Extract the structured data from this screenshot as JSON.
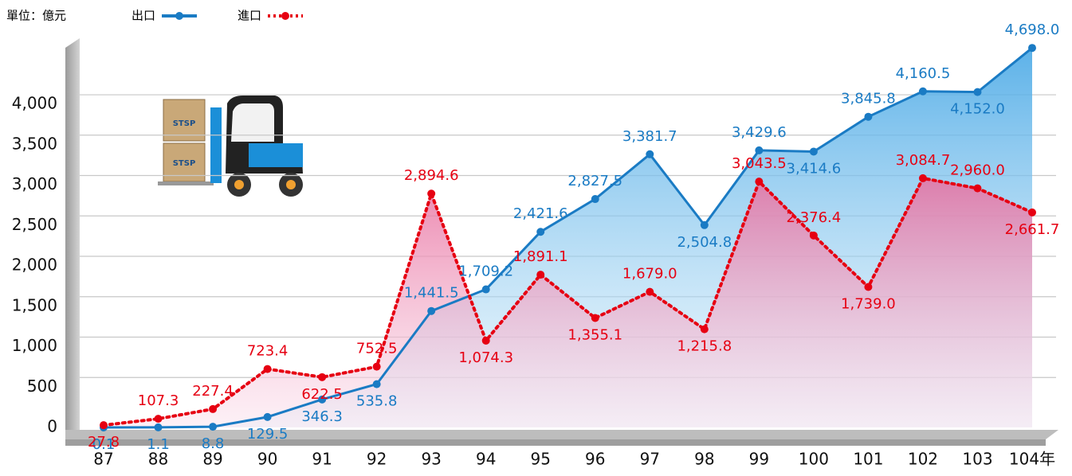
{
  "chart_data": {
    "type": "line",
    "unit_label": "單位：億元",
    "categories": [
      "87",
      "88",
      "89",
      "90",
      "91",
      "92",
      "93",
      "94",
      "95",
      "96",
      "97",
      "98",
      "99",
      "100",
      "101",
      "102",
      "103",
      "104年"
    ],
    "series": [
      {
        "name": "出口",
        "color": "#1a7bc4",
        "values": [
          0.1,
          1.1,
          8.8,
          129.5,
          346.3,
          535.8,
          1441.5,
          1709.2,
          2421.6,
          2827.5,
          3381.7,
          2504.8,
          3429.6,
          3414.6,
          3845.8,
          4160.5,
          4152.0,
          4698.0
        ],
        "value_labels": [
          "0.1",
          "1.1",
          "8.8",
          "129.5",
          "346.3",
          "535.8",
          "1,441.5",
          "1,709.2",
          "2,421.6",
          "2,827.5",
          "3,381.7",
          "2,504.8",
          "3,429.6",
          "3,414.6",
          "3,845.8",
          "4,160.5",
          "4,152.0",
          "4,698.0"
        ]
      },
      {
        "name": "進口",
        "color": "#e60012",
        "values": [
          27.8,
          107.3,
          227.4,
          723.4,
          622.5,
          752.5,
          2894.6,
          1074.3,
          1891.1,
          1355.1,
          1679.0,
          1215.8,
          3043.5,
          2376.4,
          1739.0,
          3084.7,
          2960.0,
          2661.7
        ],
        "value_labels": [
          "27.8",
          "107.3",
          "227.4",
          "723.4",
          "622.5",
          "752.5",
          "2,894.6",
          "1,074.3",
          "1,891.1",
          "1,355.1",
          "1,679.0",
          "1,215.8",
          "3,043.5",
          "2,376.4",
          "1,739.0",
          "3,084.7",
          "2,960.0",
          "2,661.7"
        ]
      }
    ],
    "ylim": [
      0,
      4700
    ],
    "yticks": [
      0,
      500,
      {
        "value": 1000,
        "label": "1,000"
      },
      {
        "value": 1500,
        "label": "1,500"
      },
      {
        "value": 2000,
        "label": "2,000"
      },
      {
        "value": 2500,
        "label": "2,500"
      },
      {
        "value": 3000,
        "label": "3,000"
      },
      {
        "value": 3500,
        "label": "3,500"
      },
      {
        "value": 4000,
        "label": "4,000"
      }
    ],
    "grid": true
  }
}
